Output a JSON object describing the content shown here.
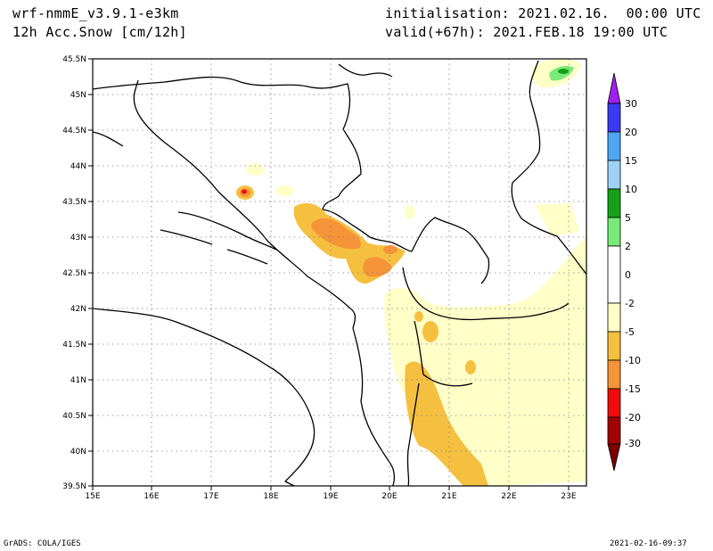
{
  "header": {
    "model": "wrf-nmmE_v3.9.1-e3km",
    "variable": "12h Acc.Snow [cm/12h]",
    "init": "initialisation: 2021.02.16.  00:00 UTC",
    "valid": "valid(+67h): 2021.FEB.18 19:00 UTC"
  },
  "footer": {
    "credit": "GrADS: COLA/IGES",
    "timestamp": "2021-02-16-09:37"
  },
  "map": {
    "lon_ticks": [
      "15E",
      "16E",
      "17E",
      "18E",
      "19E",
      "20E",
      "21E",
      "22E",
      "23E"
    ],
    "lat_ticks": [
      "45.5N",
      "45N",
      "44.5N",
      "44N",
      "43.5N",
      "43N",
      "42.5N",
      "42N",
      "41.5N",
      "41N",
      "40.5N",
      "40N",
      "39.5N"
    ]
  },
  "colorbar": {
    "labels": [
      "30",
      "20",
      "15",
      "10",
      "5",
      "2",
      "0",
      "-2",
      "-5",
      "-10",
      "-15",
      "-20",
      "-30"
    ],
    "colors": [
      "#a020f0",
      "#3a3af0",
      "#4ea6f0",
      "#9ed2f8",
      "#16a016",
      "#78ea78",
      "#ffffff",
      "#ffffc8",
      "#f5c040",
      "#f59438",
      "#f00c0c",
      "#d20000",
      "#a00000",
      "#7a0000"
    ]
  },
  "colors": {
    "light_snow": "#ffffc8",
    "moderate_snow": "#f5c040",
    "heavy_snow": "#f59438",
    "very_heavy_snow": "#f00c0c",
    "light_green": "#78ea78",
    "green": "#16a016"
  }
}
